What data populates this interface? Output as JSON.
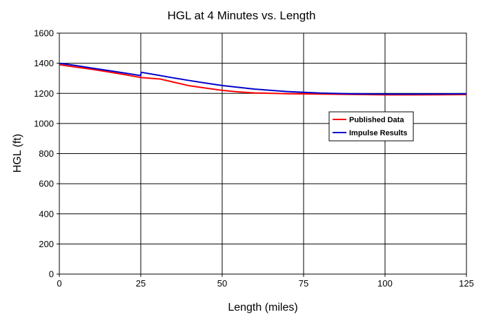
{
  "chart_data": {
    "type": "line",
    "title": "HGL at 4 Minutes vs. Length",
    "xlabel": "Length (miles)",
    "ylabel": "HGL (ft)",
    "xlim": [
      0,
      125
    ],
    "ylim": [
      0,
      1600
    ],
    "xticks": [
      0,
      25,
      50,
      75,
      100,
      125
    ],
    "yticks": [
      0,
      200,
      400,
      600,
      800,
      1000,
      1200,
      1400,
      1600
    ],
    "grid": true,
    "legend_position": "right",
    "series": [
      {
        "name": "Published Data",
        "color": "#ff0000",
        "points": [
          [
            0,
            1390
          ],
          [
            5,
            1375
          ],
          [
            10,
            1360
          ],
          [
            15,
            1343
          ],
          [
            20,
            1325
          ],
          [
            25,
            1305
          ],
          [
            31,
            1295
          ],
          [
            35,
            1275
          ],
          [
            40,
            1250
          ],
          [
            45,
            1235
          ],
          [
            50,
            1220
          ],
          [
            55,
            1210
          ],
          [
            60,
            1203
          ],
          [
            70,
            1198
          ],
          [
            80,
            1195
          ],
          [
            90,
            1193
          ],
          [
            100,
            1190
          ],
          [
            110,
            1190
          ],
          [
            125,
            1192
          ]
        ]
      },
      {
        "name": "Impulse Results",
        "color": "#0000cc",
        "points": [
          [
            0,
            1400
          ],
          [
            5,
            1385
          ],
          [
            10,
            1368
          ],
          [
            15,
            1352
          ],
          [
            20,
            1335
          ],
          [
            25,
            1318
          ],
          [
            25.1,
            1340
          ],
          [
            30,
            1322
          ],
          [
            35,
            1303
          ],
          [
            40,
            1285
          ],
          [
            45,
            1268
          ],
          [
            50,
            1252
          ],
          [
            55,
            1240
          ],
          [
            60,
            1228
          ],
          [
            70,
            1212
          ],
          [
            80,
            1202
          ],
          [
            90,
            1197
          ],
          [
            100,
            1195
          ],
          [
            110,
            1195
          ],
          [
            125,
            1197
          ]
        ]
      }
    ]
  }
}
